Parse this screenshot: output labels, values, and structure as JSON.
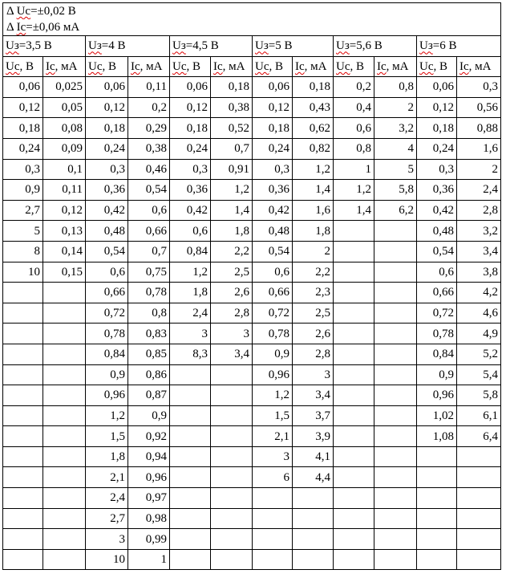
{
  "errors": {
    "uc": "Δ Uc=±0,02 В",
    "ic": "Δ Ic=±0,06 мА"
  },
  "groups": [
    {
      "header": "Uз=3,5 В",
      "col_uc": "Uc, В",
      "col_ic": "Ic, мА",
      "rows": [
        [
          "0,06",
          "0,025"
        ],
        [
          "0,12",
          "0,05"
        ],
        [
          "0,18",
          "0,08"
        ],
        [
          "0,24",
          "0,09"
        ],
        [
          "0,3",
          "0,1"
        ],
        [
          "0,9",
          "0,11"
        ],
        [
          "2,7",
          "0,12"
        ],
        [
          "5",
          "0,13"
        ],
        [
          "8",
          "0,14"
        ],
        [
          "10",
          "0,15"
        ]
      ]
    },
    {
      "header": "Uз=4 В",
      "col_uc": "Uc, В",
      "col_ic": "Ic, мА",
      "rows": [
        [
          "0,06",
          "0,11"
        ],
        [
          "0,12",
          "0,2"
        ],
        [
          "0,18",
          "0,29"
        ],
        [
          "0,24",
          "0,38"
        ],
        [
          "0,3",
          "0,46"
        ],
        [
          "0,36",
          "0,54"
        ],
        [
          "0,42",
          "0,6"
        ],
        [
          "0,48",
          "0,66"
        ],
        [
          "0,54",
          "0,7"
        ],
        [
          "0,6",
          "0,75"
        ],
        [
          "0,66",
          "0,78"
        ],
        [
          "0,72",
          "0,8"
        ],
        [
          "0,78",
          "0,83"
        ],
        [
          "0,84",
          "0,85"
        ],
        [
          "0,9",
          "0,86"
        ],
        [
          "0,96",
          "0,87"
        ],
        [
          "1,2",
          "0,9"
        ],
        [
          "1,5",
          "0,92"
        ],
        [
          "1,8",
          "0,94"
        ],
        [
          "2,1",
          "0,96"
        ],
        [
          "2,4",
          "0,97"
        ],
        [
          "2,7",
          "0,98"
        ],
        [
          "3",
          "0,99"
        ],
        [
          "10",
          "1"
        ]
      ]
    },
    {
      "header": "Uз=4,5 В",
      "col_uc": "Uc, В",
      "col_ic": "Ic, мА",
      "rows": [
        [
          "0,06",
          "0,18"
        ],
        [
          "0,12",
          "0,38"
        ],
        [
          "0,18",
          "0,52"
        ],
        [
          "0,24",
          "0,7"
        ],
        [
          "0,3",
          "0,91"
        ],
        [
          "0,36",
          "1,2"
        ],
        [
          "0,42",
          "1,4"
        ],
        [
          "0,6",
          "1,8"
        ],
        [
          "0,84",
          "2,2"
        ],
        [
          "1,2",
          "2,5"
        ],
        [
          "1,8",
          "2,6"
        ],
        [
          "2,4",
          "2,8"
        ],
        [
          "3",
          "3"
        ],
        [
          "8,3",
          "3,4"
        ]
      ]
    },
    {
      "header": "Uз=5 В",
      "col_uc": "Uc, В",
      "col_ic": "Ic, мА",
      "rows": [
        [
          "0,06",
          "0,18"
        ],
        [
          "0,12",
          "0,43"
        ],
        [
          "0,18",
          "0,62"
        ],
        [
          "0,24",
          "0,82"
        ],
        [
          "0,3",
          "1,2"
        ],
        [
          "0,36",
          "1,4"
        ],
        [
          "0,42",
          "1,6"
        ],
        [
          "0,48",
          "1,8"
        ],
        [
          "0,54",
          "2"
        ],
        [
          "0,6",
          "2,2"
        ],
        [
          "0,66",
          "2,3"
        ],
        [
          "0,72",
          "2,5"
        ],
        [
          "0,78",
          "2,6"
        ],
        [
          "0,9",
          "2,8"
        ],
        [
          "0,96",
          "3"
        ],
        [
          "1,2",
          "3,4"
        ],
        [
          "1,5",
          "3,7"
        ],
        [
          "2,1",
          "3,9"
        ],
        [
          "3",
          "4,1"
        ],
        [
          "6",
          "4,4"
        ]
      ]
    },
    {
      "header": "Uз=5,6 В",
      "col_uc": "Uc, В",
      "col_ic": "Ic, мА",
      "rows": [
        [
          "0,2",
          "0,8"
        ],
        [
          "0,4",
          "2"
        ],
        [
          "0,6",
          "3,2"
        ],
        [
          "0,8",
          "4"
        ],
        [
          "1",
          "5"
        ],
        [
          "1,2",
          "5,8"
        ],
        [
          "1,4",
          "6,2"
        ]
      ]
    },
    {
      "header": "Uз=6 В",
      "col_uc": "Uc, В",
      "col_ic": "Ic, мА",
      "rows": [
        [
          "0,06",
          "0,3"
        ],
        [
          "0,12",
          "0,56"
        ],
        [
          "0,18",
          "0,88"
        ],
        [
          "0,24",
          "1,6"
        ],
        [
          "0,3",
          "2"
        ],
        [
          "0,36",
          "2,4"
        ],
        [
          "0,42",
          "2,8"
        ],
        [
          "0,48",
          "3,2"
        ],
        [
          "0,54",
          "3,4"
        ],
        [
          "0,6",
          "3,8"
        ],
        [
          "0,66",
          "4,2"
        ],
        [
          "0,72",
          "4,6"
        ],
        [
          "0,78",
          "4,9"
        ],
        [
          "0,84",
          "5,2"
        ],
        [
          "0,9",
          "5,4"
        ],
        [
          "0,96",
          "5,8"
        ],
        [
          "1,02",
          "6,1"
        ],
        [
          "1,08",
          "6,4"
        ]
      ]
    }
  ]
}
